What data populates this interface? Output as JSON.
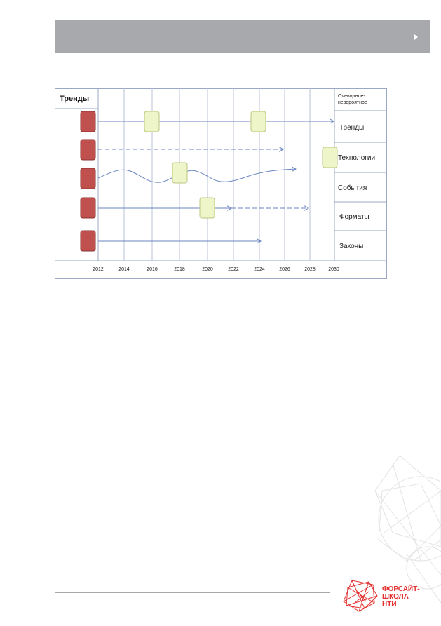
{
  "header": {
    "title": ""
  },
  "diagram": {
    "title_cell": "Тренды",
    "categories_header": "Очевидное-невероятное",
    "categories": [
      "Тренды",
      "Технологии",
      "События",
      "Форматы",
      "Законы"
    ],
    "years": [
      "2012",
      "2014",
      "2016",
      "2018",
      "2020",
      "2022",
      "2024",
      "2026",
      "2028",
      "2030"
    ],
    "colors": {
      "trend_box": "#c0504d",
      "event_box": "#eef5c8",
      "arrow": "#6a85c2",
      "grid": "#9aa8c4"
    }
  },
  "logo": {
    "line1": "ФОРСАЙТ-",
    "line2": "ШКОЛА",
    "line3": "НТИ",
    "color": "#e2312f"
  }
}
